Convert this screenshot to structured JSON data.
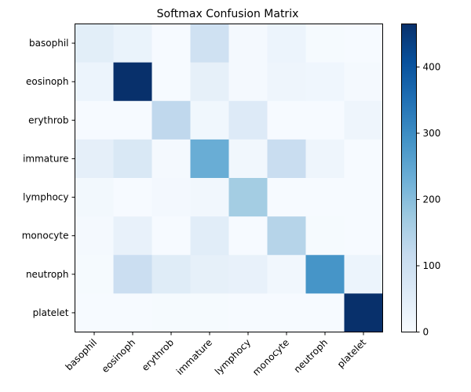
{
  "chart_data": {
    "type": "heatmap",
    "title": "Softmax Confusion Matrix",
    "xlabel": "",
    "ylabel": "",
    "row_labels": [
      "basophil",
      "eosinoph",
      "erythrob",
      "immature",
      "lymphocy",
      "monocyte",
      "neutroph",
      "platelet"
    ],
    "col_labels": [
      "basophil",
      "eosinoph",
      "erythrob",
      "immature",
      "lymphocy",
      "monocyte",
      "neutroph",
      "platelet"
    ],
    "values": [
      [
        48,
        30,
        2,
        95,
        8,
        25,
        5,
        3
      ],
      [
        25,
        465,
        2,
        40,
        8,
        22,
        18,
        6
      ],
      [
        3,
        3,
        125,
        16,
        60,
        3,
        3,
        20
      ],
      [
        42,
        70,
        6,
        235,
        15,
        110,
        22,
        3
      ],
      [
        12,
        2,
        10,
        14,
        165,
        2,
        2,
        2
      ],
      [
        6,
        35,
        2,
        50,
        2,
        140,
        4,
        2
      ],
      [
        5,
        105,
        55,
        40,
        35,
        15,
        285,
        25
      ],
      [
        2,
        3,
        4,
        4,
        3,
        3,
        3,
        465
      ]
    ],
    "colorbar": {
      "min": 0,
      "max": 465,
      "ticks": [
        0,
        100,
        200,
        300,
        400
      ],
      "colormap": "Blues"
    }
  }
}
